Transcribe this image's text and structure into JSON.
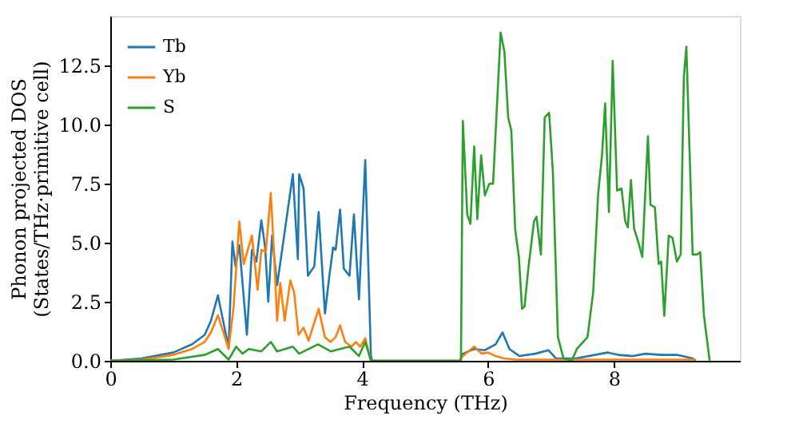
{
  "chart_data": {
    "type": "line",
    "xlabel": "Frequency (THz)",
    "ylabel": "Phonon projected DOS\n(States/THz·primitive cell)",
    "xlim": [
      0,
      10
    ],
    "ylim": [
      0,
      14.6
    ],
    "xticks": [
      0,
      2,
      4,
      6,
      8
    ],
    "yticks": [
      {
        "value": 0,
        "label": "0.0"
      },
      {
        "value": 2.5,
        "label": "2.5"
      },
      {
        "value": 5,
        "label": "5.0"
      },
      {
        "value": 7.5,
        "label": "7.5"
      },
      {
        "value": 10,
        "label": "10.0"
      },
      {
        "value": 12.5,
        "label": "12.5"
      }
    ],
    "legend": "top left",
    "grid": false,
    "marker": "none",
    "line_style": "solid",
    "series": [
      {
        "name": "Tb",
        "color": "#1f77b4",
        "x": [
          0,
          0.5,
          1.0,
          1.3,
          1.5,
          1.6,
          1.71,
          1.88,
          1.94,
          1.99,
          2.05,
          2.17,
          2.25,
          2.32,
          2.4,
          2.46,
          2.51,
          2.57,
          2.65,
          2.9,
          2.98,
          3.0,
          3.07,
          3.14,
          3.24,
          3.31,
          3.41,
          3.48,
          3.54,
          3.58,
          3.65,
          3.71,
          3.8,
          3.87,
          3.95,
          4.05,
          4.14,
          4.16,
          5.55,
          5.6,
          5.78,
          5.95,
          6.12,
          6.23,
          6.34,
          6.5,
          6.75,
          6.96,
          7.08,
          7.4,
          7.9,
          8.07,
          8.3,
          8.5,
          8.75,
          9.0,
          9.25,
          9.3
        ],
        "values": [
          0,
          0.1,
          0.35,
          0.7,
          1.1,
          1.7,
          2.77,
          0.55,
          5.05,
          4.0,
          4.9,
          1.1,
          4.7,
          4.2,
          5.95,
          4.8,
          2.5,
          5.3,
          3.2,
          7.9,
          4.3,
          7.9,
          7.3,
          3.6,
          4.0,
          6.3,
          2.0,
          3.6,
          4.8,
          4.7,
          6.4,
          3.9,
          3.6,
          6.2,
          2.6,
          8.5,
          0.2,
          0,
          0,
          0.3,
          0.5,
          0.45,
          0.7,
          1.2,
          0.5,
          0.2,
          0.3,
          0.45,
          0.1,
          0.1,
          0.35,
          0.25,
          0.2,
          0.3,
          0.25,
          0.25,
          0.1,
          0
        ]
      },
      {
        "name": "Yb",
        "color": "#ff7f0e",
        "x": [
          0,
          0.5,
          1.0,
          1.3,
          1.5,
          1.6,
          1.71,
          1.88,
          1.96,
          2.05,
          2.12,
          2.25,
          2.34,
          2.4,
          2.47,
          2.55,
          2.6,
          2.65,
          2.7,
          2.77,
          2.86,
          2.92,
          2.99,
          3.07,
          3.15,
          3.31,
          3.41,
          3.5,
          3.58,
          3.65,
          3.73,
          3.83,
          3.9,
          3.97,
          4.05,
          4.14,
          4.16,
          5.55,
          5.6,
          5.78,
          5.9,
          6.0,
          6.12,
          6.25,
          6.45,
          9.3
        ],
        "values": [
          0,
          0.05,
          0.25,
          0.5,
          0.8,
          1.2,
          1.93,
          0.5,
          2.3,
          5.9,
          4.1,
          5.3,
          3.0,
          4.7,
          4.6,
          7.1,
          4.6,
          1.7,
          3.3,
          1.7,
          3.4,
          2.9,
          1.1,
          1.4,
          0.85,
          2.2,
          1.0,
          0.8,
          1.0,
          1.5,
          0.8,
          0.6,
          0.8,
          0.6,
          0.95,
          0,
          0,
          0,
          0.2,
          0.6,
          0.3,
          0.35,
          0.2,
          0.1,
          0.05,
          0.05
        ]
      },
      {
        "name": "S",
        "color": "#2ca02c",
        "x": [
          0,
          1.0,
          1.5,
          1.71,
          1.88,
          2.0,
          2.1,
          2.2,
          2.4,
          2.55,
          2.65,
          2.9,
          3.0,
          3.3,
          3.5,
          3.8,
          3.95,
          4.05,
          4.14,
          5.55,
          5.57,
          5.6,
          5.67,
          5.72,
          5.78,
          5.83,
          5.89,
          5.95,
          6.02,
          6.08,
          6.2,
          6.26,
          6.32,
          6.37,
          6.43,
          6.49,
          6.54,
          6.58,
          6.64,
          6.73,
          6.77,
          6.84,
          6.9,
          6.97,
          7.03,
          7.11,
          7.2,
          7.33,
          7.41,
          7.58,
          7.67,
          7.75,
          7.81,
          7.86,
          7.92,
          7.98,
          8.05,
          8.12,
          8.18,
          8.22,
          8.27,
          8.32,
          8.39,
          8.45,
          8.54,
          8.58,
          8.65,
          8.71,
          8.75,
          8.8,
          8.87,
          8.93,
          9.0,
          9.06,
          9.11,
          9.15,
          9.21,
          9.25,
          9.32,
          9.37,
          9.43,
          9.52
        ],
        "values": [
          0,
          0.05,
          0.25,
          0.5,
          0.05,
          0.6,
          0.3,
          0.5,
          0.4,
          0.8,
          0.4,
          0.6,
          0.3,
          0.7,
          0.4,
          0.6,
          0.2,
          0.8,
          0,
          0,
          0,
          10.15,
          6.2,
          5.8,
          9.07,
          6.0,
          8.7,
          7.0,
          7.5,
          7.5,
          13.9,
          13.1,
          10.3,
          9.75,
          5.6,
          4.4,
          2.2,
          2.3,
          3.9,
          5.9,
          6.1,
          4.5,
          10.3,
          10.5,
          8.0,
          1.0,
          0.1,
          0,
          0.5,
          1.0,
          2.9,
          7.1,
          8.7,
          10.9,
          6.3,
          12.7,
          7.2,
          7.3,
          5.9,
          5.65,
          7.65,
          5.6,
          5.0,
          4.4,
          9.5,
          6.6,
          6.5,
          4.1,
          4.2,
          1.9,
          5.3,
          5.2,
          4.2,
          4.5,
          12.0,
          13.3,
          8.1,
          4.5,
          4.5,
          4.6,
          1.9,
          0
        ]
      }
    ]
  }
}
